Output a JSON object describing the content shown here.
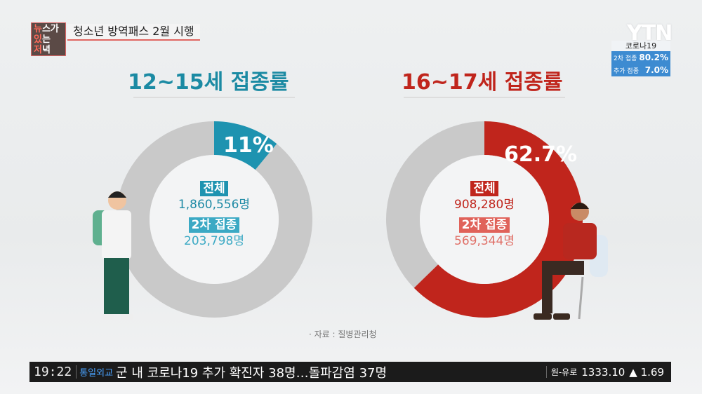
{
  "header": {
    "program_logo": "뉴스가 있는 저녁",
    "topic": "청소년 방역패스 2월 시행"
  },
  "channel": {
    "logo": "YTN",
    "box_title": "코로나19",
    "rows": [
      {
        "label": "2차 접종",
        "value": "80.2%"
      },
      {
        "label": "추가 접종",
        "value": "7.0%"
      }
    ]
  },
  "chart_data": [
    {
      "type": "pie",
      "donut": true,
      "title": "12~15세 접종률",
      "slices": [
        {
          "value": 11,
          "color": "#1e93b0"
        },
        {
          "value": 89,
          "color": "#c9c9c9"
        }
      ],
      "data_label": "11%",
      "total_label": "전체",
      "total_value": "1,860,556명",
      "second_label": "2차 접종",
      "second_value": "203,798명"
    },
    {
      "type": "pie",
      "donut": true,
      "title": "16~17세 접종률",
      "slices": [
        {
          "value": 62.7,
          "color": "#c0251c"
        },
        {
          "value": 37.3,
          "color": "#c9c9c9"
        }
      ],
      "data_label": "62.7%",
      "total_label": "전체",
      "total_value": "908,280명",
      "second_label": "2차 접종",
      "second_value": "569,344명"
    }
  ],
  "source": "· 자료 : 질병관리청",
  "ticker": {
    "time": "19:22",
    "category": "통일외교",
    "headline": "군 내 코로나19 추가 확진자 38명…돌파감염 37명",
    "fx_label": "원-유로",
    "fx_value": "1333.10",
    "fx_change": "▲ 1.69"
  }
}
